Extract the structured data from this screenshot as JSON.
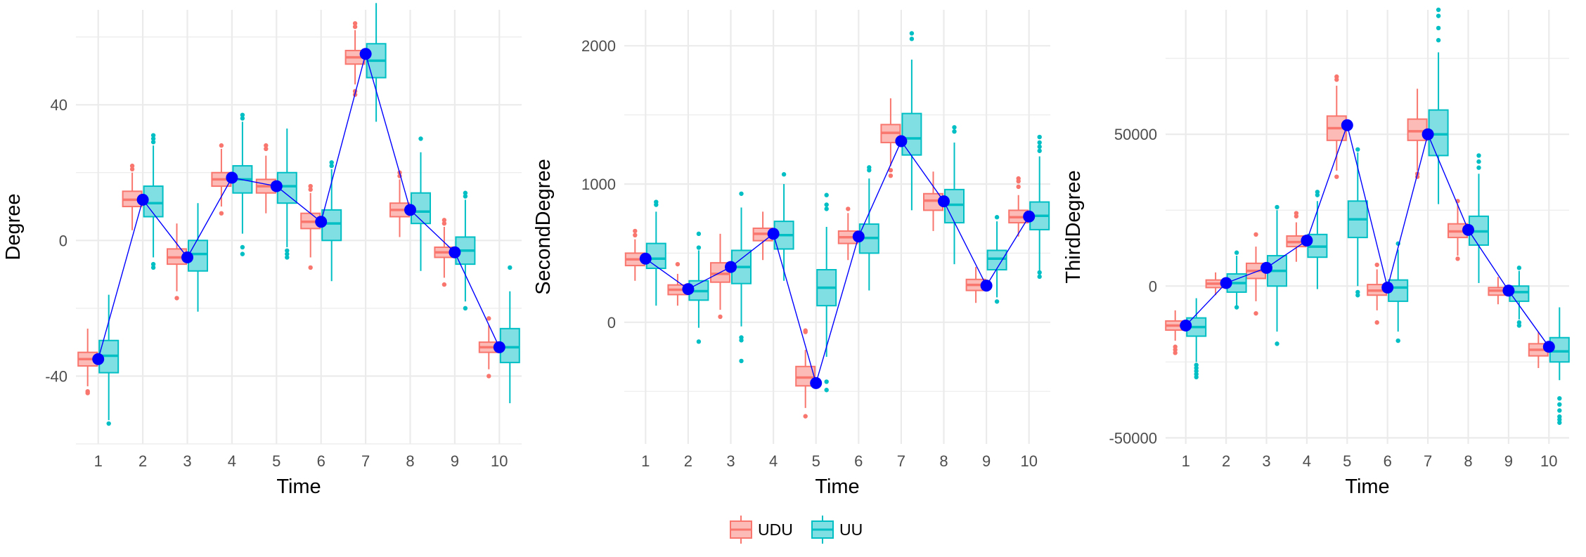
{
  "colors": {
    "UDU": "#F8766D",
    "UU": "#00BFC4",
    "mean_line": "#0000FF",
    "grid": "#EBEBEB"
  },
  "legend": {
    "position": "bottom",
    "items": [
      {
        "label": "UDU",
        "color": "#F8766D"
      },
      {
        "label": "UU",
        "color": "#00BFC4"
      }
    ]
  },
  "chart_data": [
    {
      "type": "box",
      "xlabel": "Time",
      "ylabel": "Degree",
      "categories": [
        "1",
        "2",
        "3",
        "4",
        "5",
        "6",
        "7",
        "8",
        "9",
        "10"
      ],
      "ylim": [
        -60,
        68
      ],
      "yticks": [
        -40,
        0,
        40
      ],
      "ytick_labels": [
        "-40",
        "0",
        "40"
      ],
      "grid": true,
      "series": [
        {
          "name": "UDU",
          "boxes": [
            {
              "q1": -37,
              "median": -35,
              "q3": -33,
              "whislo": -43,
              "whishi": -26,
              "outliers": [
                -44.5,
                -45
              ]
            },
            {
              "q1": 10,
              "median": 12,
              "q3": 14.5,
              "whislo": 3,
              "whishi": 20,
              "outliers": [
                21,
                22
              ]
            },
            {
              "q1": -7,
              "median": -5,
              "q3": -2.5,
              "whislo": -15,
              "whishi": 5,
              "outliers": [
                -17
              ]
            },
            {
              "q1": 16,
              "median": 18,
              "q3": 20,
              "whislo": 10,
              "whishi": 27,
              "outliers": [
                28,
                8
              ]
            },
            {
              "q1": 14,
              "median": 16,
              "q3": 18,
              "whislo": 8,
              "whishi": 25,
              "outliers": [
                27,
                28
              ]
            },
            {
              "q1": 3.5,
              "median": 5.5,
              "q3": 8,
              "whislo": -5,
              "whishi": 14,
              "outliers": [
                15,
                16,
                -8
              ]
            },
            {
              "q1": 52,
              "median": 54,
              "q3": 56,
              "whislo": 46,
              "whishi": 62,
              "outliers": [
                63,
                64,
                44,
                43
              ]
            },
            {
              "q1": 7,
              "median": 9,
              "q3": 11,
              "whislo": 1,
              "whishi": 18,
              "outliers": [
                20,
                19
              ]
            },
            {
              "q1": -5,
              "median": -3.5,
              "q3": -2,
              "whislo": -11,
              "whishi": 4,
              "outliers": [
                5,
                6,
                -13
              ]
            },
            {
              "q1": -33,
              "median": -31.5,
              "q3": -30,
              "whislo": -38,
              "whishi": -25,
              "outliers": [
                -23,
                -40
              ]
            }
          ]
        },
        {
          "name": "UU",
          "boxes": [
            {
              "q1": -39,
              "median": -34,
              "q3": -29.5,
              "whislo": -53,
              "whishi": -16,
              "outliers": [
                -54
              ]
            },
            {
              "q1": 7,
              "median": 11,
              "q3": 16,
              "whislo": -5,
              "whishi": 28,
              "outliers": [
                29,
                30,
                31,
                -7,
                -8
              ]
            },
            {
              "q1": -9,
              "median": -4,
              "q3": 0,
              "whislo": -21,
              "whishi": 11,
              "outliers": []
            },
            {
              "q1": 14,
              "median": 18,
              "q3": 22,
              "whislo": 2,
              "whishi": 35,
              "outliers": [
                36,
                37,
                -2,
                -4
              ]
            },
            {
              "q1": 11,
              "median": 16,
              "q3": 20,
              "whislo": -2,
              "whishi": 33,
              "outliers": [
                -3,
                -4,
                -5
              ]
            },
            {
              "q1": 0,
              "median": 5,
              "q3": 9,
              "whislo": -12,
              "whishi": 21,
              "outliers": [
                22,
                23
              ]
            },
            {
              "q1": 48,
              "median": 53,
              "q3": 58,
              "whislo": 35,
              "whishi": 70,
              "outliers": [
                73
              ]
            },
            {
              "q1": 5,
              "median": 8.5,
              "q3": 14,
              "whislo": -9,
              "whishi": 26,
              "outliers": [
                30
              ]
            },
            {
              "q1": -7,
              "median": -3,
              "q3": 1,
              "whislo": -18,
              "whishi": 12,
              "outliers": [
                13,
                14,
                -20
              ]
            },
            {
              "q1": -36,
              "median": -31.5,
              "q3": -26,
              "whislo": -48,
              "whishi": -15,
              "outliers": [
                -8
              ]
            }
          ]
        }
      ],
      "mean_line": [
        -35,
        12,
        -5,
        18.5,
        16,
        5.5,
        55,
        9,
        -3.5,
        -31.5
      ]
    },
    {
      "type": "box",
      "xlabel": "Time",
      "ylabel": "SecondDegree",
      "categories": [
        "1",
        "2",
        "3",
        "4",
        "5",
        "6",
        "7",
        "8",
        "9",
        "10"
      ],
      "ylim": [
        -880,
        2260
      ],
      "yticks": [
        0,
        1000,
        2000
      ],
      "ytick_labels": [
        "0",
        "1000",
        "2000"
      ],
      "grid": true,
      "series": [
        {
          "name": "UDU",
          "boxes": [
            {
              "q1": 410,
              "median": 455,
              "q3": 500,
              "whislo": 300,
              "whishi": 600,
              "outliers": [
                630,
                660
              ]
            },
            {
              "q1": 200,
              "median": 235,
              "q3": 270,
              "whislo": 120,
              "whishi": 350,
              "outliers": [
                420
              ]
            },
            {
              "q1": 290,
              "median": 350,
              "q3": 430,
              "whislo": 90,
              "whishi": 640,
              "outliers": [
                40
              ]
            },
            {
              "q1": 590,
              "median": 640,
              "q3": 680,
              "whislo": 450,
              "whishi": 800,
              "outliers": []
            },
            {
              "q1": -460,
              "median": -400,
              "q3": -320,
              "whislo": -620,
              "whishi": -200,
              "outliers": [
                -60,
                -70,
                -680
              ]
            },
            {
              "q1": 570,
              "median": 615,
              "q3": 660,
              "whislo": 450,
              "whishi": 790,
              "outliers": [
                820
              ]
            },
            {
              "q1": 1300,
              "median": 1370,
              "q3": 1430,
              "whislo": 1130,
              "whishi": 1620,
              "outliers": [
                1100,
                1060
              ]
            },
            {
              "q1": 810,
              "median": 880,
              "q3": 930,
              "whislo": 660,
              "whishi": 1090,
              "outliers": []
            },
            {
              "q1": 230,
              "median": 270,
              "q3": 310,
              "whislo": 140,
              "whishi": 400,
              "outliers": []
            },
            {
              "q1": 720,
              "median": 760,
              "q3": 810,
              "whislo": 620,
              "whishi": 920,
              "outliers": [
                980,
                1020,
                1040
              ]
            }
          ]
        },
        {
          "name": "UU",
          "boxes": [
            {
              "q1": 390,
              "median": 460,
              "q3": 570,
              "whislo": 120,
              "whishi": 800,
              "outliers": [
                850,
                870
              ]
            },
            {
              "q1": 160,
              "median": 225,
              "q3": 300,
              "whislo": -40,
              "whishi": 520,
              "outliers": [
                540,
                640,
                -140
              ]
            },
            {
              "q1": 280,
              "median": 400,
              "q3": 520,
              "whislo": -30,
              "whishi": 830,
              "outliers": [
                930,
                -110,
                -130,
                -280
              ]
            },
            {
              "q1": 530,
              "median": 630,
              "q3": 730,
              "whislo": 300,
              "whishi": 1000,
              "outliers": [
                1070
              ]
            },
            {
              "q1": 120,
              "median": 250,
              "q3": 380,
              "whislo": -250,
              "whishi": 690,
              "outliers": [
                820,
                850,
                920,
                -430,
                -490
              ]
            },
            {
              "q1": 500,
              "median": 610,
              "q3": 710,
              "whislo": 230,
              "whishi": 1040,
              "outliers": [
                1100,
                1120
              ]
            },
            {
              "q1": 1210,
              "median": 1330,
              "q3": 1510,
              "whislo": 810,
              "whishi": 1900,
              "outliers": [
                2050,
                2090
              ]
            },
            {
              "q1": 720,
              "median": 850,
              "q3": 960,
              "whislo": 420,
              "whishi": 1300,
              "outliers": [
                1380,
                1410
              ]
            },
            {
              "q1": 380,
              "median": 460,
              "q3": 520,
              "whislo": 180,
              "whishi": 730,
              "outliers": [
                760,
                150
              ]
            },
            {
              "q1": 670,
              "median": 770,
              "q3": 870,
              "whislo": 370,
              "whishi": 1200,
              "outliers": [
                1240,
                1270,
                1300,
                1340,
                330,
                360
              ]
            }
          ]
        }
      ],
      "mean_line": [
        460,
        240,
        400,
        640,
        -440,
        620,
        1310,
        875,
        265,
        765
      ]
    },
    {
      "type": "box",
      "xlabel": "Time",
      "ylabel": "ThirdDegree",
      "categories": [
        "1",
        "2",
        "3",
        "4",
        "5",
        "6",
        "7",
        "8",
        "9",
        "10"
      ],
      "ylim": [
        -52000,
        91000
      ],
      "yticks": [
        -50000,
        0,
        50000
      ],
      "ytick_labels": [
        "-50000",
        "0",
        "50000"
      ],
      "grid": true,
      "series": [
        {
          "name": "UDU",
          "boxes": [
            {
              "q1": -14500,
              "median": -13000,
              "q3": -11500,
              "whislo": -18000,
              "whishi": -8000,
              "outliers": [
                -20000,
                -21000,
                -22000
              ]
            },
            {
              "q1": -500,
              "median": 800,
              "q3": 2000,
              "whislo": -3000,
              "whishi": 4500,
              "outliers": []
            },
            {
              "q1": 2500,
              "median": 5000,
              "q3": 7500,
              "whislo": -5000,
              "whishi": 13000,
              "outliers": [
                17000,
                -9000
              ]
            },
            {
              "q1": 13000,
              "median": 14500,
              "q3": 16500,
              "whislo": 8000,
              "whishi": 21000,
              "outliers": [
                23000,
                24000
              ]
            },
            {
              "q1": 48000,
              "median": 52000,
              "q3": 56000,
              "whislo": 38000,
              "whishi": 66000,
              "outliers": [
                68000,
                69000,
                36000
              ]
            },
            {
              "q1": -3000,
              "median": -1500,
              "q3": 500,
              "whislo": -8000,
              "whishi": 5500,
              "outliers": [
                7000,
                -12000
              ]
            },
            {
              "q1": 48000,
              "median": 51000,
              "q3": 55000,
              "whislo": 38000,
              "whishi": 65000,
              "outliers": [
                36000,
                37000
              ]
            },
            {
              "q1": 16000,
              "median": 18000,
              "q3": 20500,
              "whislo": 10000,
              "whishi": 27000,
              "outliers": [
                28000,
                9000
              ]
            },
            {
              "q1": -3000,
              "median": -1500,
              "q3": -500,
              "whislo": -6000,
              "whishi": 3000,
              "outliers": []
            },
            {
              "q1": -23000,
              "median": -21000,
              "q3": -19000,
              "whislo": -27000,
              "whishi": -15000,
              "outliers": []
            }
          ]
        },
        {
          "name": "UU",
          "boxes": [
            {
              "q1": -16500,
              "median": -13500,
              "q3": -10500,
              "whislo": -25000,
              "whishi": -4000,
              "outliers": [
                -26000,
                -27000,
                -28000,
                -29000,
                -30000
              ]
            },
            {
              "q1": -2000,
              "median": 1000,
              "q3": 4000,
              "whislo": -6500,
              "whishi": 10000,
              "outliers": [
                11000,
                -7000
              ]
            },
            {
              "q1": 0,
              "median": 5000,
              "q3": 10000,
              "whislo": -15000,
              "whishi": 25000,
              "outliers": [
                26000,
                -19000
              ]
            },
            {
              "q1": 9500,
              "median": 13000,
              "q3": 17000,
              "whislo": -1000,
              "whishi": 28000,
              "outliers": [
                30000,
                31000
              ]
            },
            {
              "q1": 16000,
              "median": 22000,
              "q3": 28000,
              "whislo": 0,
              "whishi": 44000,
              "outliers": [
                45000,
                -2000,
                -3000
              ]
            },
            {
              "q1": -5000,
              "median": -500,
              "q3": 2000,
              "whislo": -15000,
              "whishi": 12000,
              "outliers": [
                14000,
                -18000
              ]
            },
            {
              "q1": 43000,
              "median": 50000,
              "q3": 58000,
              "whislo": 27000,
              "whishi": 77000,
              "outliers": [
                81000,
                85000,
                89000,
                91000
              ]
            },
            {
              "q1": 13500,
              "median": 18000,
              "q3": 23000,
              "whislo": 1000,
              "whishi": 37000,
              "outliers": [
                39000,
                41000,
                43000
              ]
            },
            {
              "q1": -5000,
              "median": -2000,
              "q3": 0,
              "whislo": -11000,
              "whishi": 5000,
              "outliers": [
                6000,
                -12000,
                -13000
              ]
            },
            {
              "q1": -25000,
              "median": -21500,
              "q3": -17000,
              "whislo": -31000,
              "whishi": -7000,
              "outliers": [
                -37000,
                -39000,
                -41000,
                -43000,
                -44000,
                -45000
              ]
            }
          ]
        }
      ],
      "mean_line": [
        -13000,
        1000,
        6000,
        15000,
        53000,
        -500,
        50000,
        18500,
        -1500,
        -20000
      ]
    }
  ]
}
